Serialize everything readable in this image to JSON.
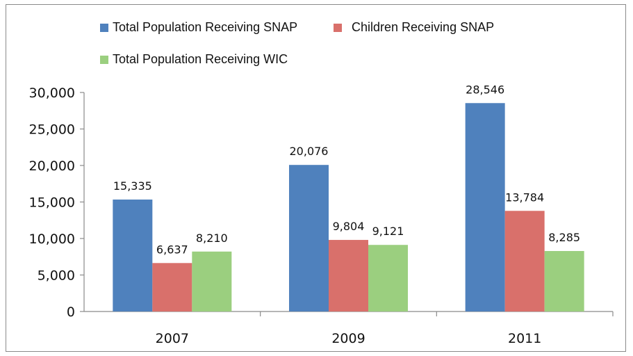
{
  "chart_data": {
    "type": "bar",
    "categories": [
      "2007",
      "2009",
      "2011"
    ],
    "series": [
      {
        "name": "Total Population Receiving SNAP",
        "values": [
          15335,
          20076,
          28546
        ],
        "labels": [
          "15,335",
          "20,076",
          "28,546"
        ],
        "color": "#4f81bd"
      },
      {
        "name": "Children Receiving SNAP",
        "values": [
          6637,
          9804,
          13784
        ],
        "labels": [
          "6,637",
          "9,804",
          "13,784"
        ],
        "color": "#d9706b"
      },
      {
        "name": "Total Population Receiving WIC",
        "values": [
          8210,
          9121,
          8285
        ],
        "labels": [
          "8,210",
          "9,121",
          "8,285"
        ],
        "color": "#9bcf7f"
      }
    ],
    "ylim": [
      0,
      30000
    ],
    "yticks": [
      0,
      5000,
      10000,
      15000,
      20000,
      25000,
      30000
    ],
    "ytick_labels": [
      "0",
      "5,000",
      "10,000",
      "15,000",
      "20,000",
      "25,000",
      "30,000"
    ],
    "legend_position": "top",
    "grid": false
  }
}
